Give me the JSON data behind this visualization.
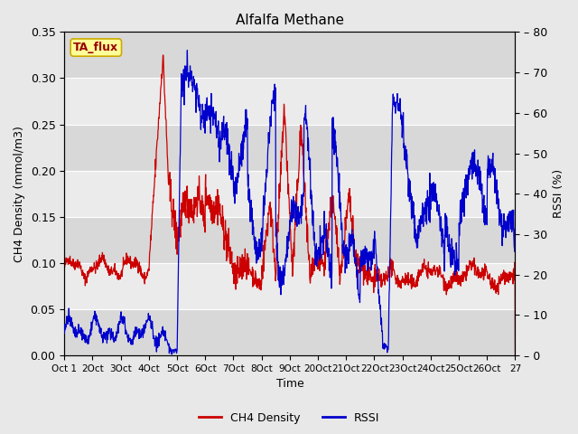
{
  "title": "Alfalfa Methane",
  "xlabel": "Time",
  "ylabel_left": "CH4 Density (mmol/m3)",
  "ylabel_right": "RSSI (%)",
  "annotation": "TA_flux",
  "x_tick_labels": [
    "Oct 1",
    "2Oct",
    "3Oct",
    "4Oct",
    "5Oct",
    "6Oct",
    "7Oct",
    "8Oct",
    "9Oct",
    "20Oct",
    "21Oct",
    "22Oct",
    "23Oct",
    "24Oct",
    "25Oct",
    "26Oct",
    "27"
  ],
  "ylim_left": [
    0.0,
    0.35
  ],
  "ylim_right": [
    0,
    80
  ],
  "yticks_left": [
    0.0,
    0.05,
    0.1,
    0.15,
    0.2,
    0.25,
    0.3,
    0.35
  ],
  "yticks_right": [
    0,
    10,
    20,
    30,
    40,
    50,
    60,
    70,
    80
  ],
  "color_red": "#cc0000",
  "color_blue": "#0000cc",
  "bg_color": "#e8e8e8",
  "band_light": "#ebebeb",
  "band_dark": "#d8d8d8",
  "annotation_bg": "#ffff99",
  "annotation_border": "#ccaa00",
  "legend_entries": [
    "CH4 Density",
    "RSSI"
  ]
}
